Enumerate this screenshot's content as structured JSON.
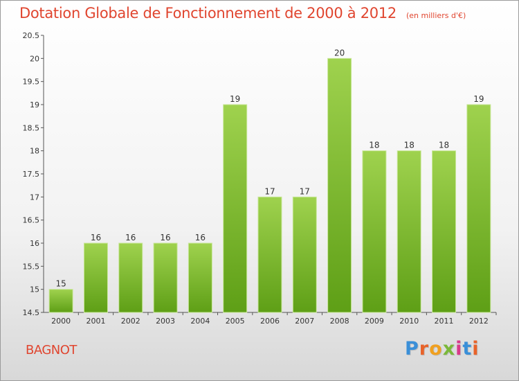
{
  "title": "Dotation Globale de Fonctionnement de 2000 à 2012",
  "unit_label": "(en milliers d'€)",
  "commune": "BAGNOT",
  "brand": {
    "letters": [
      "P",
      "r",
      "o",
      "x",
      "i",
      "t",
      "i"
    ],
    "colors": [
      "#3a8fd8",
      "#e8632a",
      "#f0a020",
      "#7ab83a",
      "#d93a8a",
      "#3a8fd8",
      "#e8632a"
    ]
  },
  "chart_data": {
    "type": "bar",
    "categories": [
      "2000",
      "2001",
      "2002",
      "2003",
      "2004",
      "2005",
      "2006",
      "2007",
      "2008",
      "2009",
      "2010",
      "2011",
      "2012"
    ],
    "values": [
      15,
      16,
      16,
      16,
      16,
      19,
      17,
      17,
      20,
      18,
      18,
      18,
      19
    ],
    "ylim": [
      14.5,
      20.5
    ],
    "yticks": [
      14.5,
      15,
      15.5,
      16,
      16.5,
      17,
      17.5,
      18,
      18.5,
      19,
      19.5,
      20,
      20.5
    ],
    "grid": false,
    "bar_color": "#8cc63f"
  }
}
